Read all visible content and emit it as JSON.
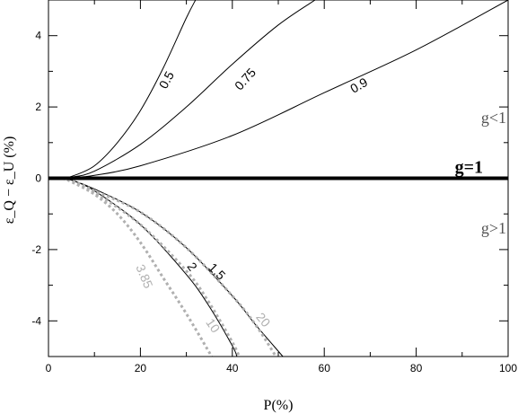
{
  "chart_data": {
    "type": "line",
    "xlabel": "P(%)",
    "ylabel": "ε_Q − ε_U (%)",
    "xlim": [
      0,
      100
    ],
    "ylim": [
      -5,
      5
    ],
    "x_ticks": [
      0,
      20,
      40,
      60,
      80,
      100
    ],
    "y_ticks": [
      -4,
      -2,
      0,
      2,
      4
    ],
    "grid": false,
    "colors": {
      "black": "#000000",
      "gray": "#b0b0b0"
    },
    "region_labels": {
      "upper": "g<1",
      "lower": "g>1"
    },
    "reference_line": {
      "label": "g=1",
      "y": 0
    },
    "series": [
      {
        "name": "0.5",
        "style": "solid",
        "color": "#000000",
        "x": [
          3,
          5,
          10,
          15,
          20,
          25,
          30,
          32
        ],
        "y": [
          0,
          0.05,
          0.35,
          1.0,
          1.9,
          3.1,
          4.5,
          5.0
        ]
      },
      {
        "name": "0.75",
        "style": "solid",
        "color": "#000000",
        "x": [
          3,
          5,
          10,
          20,
          30,
          40,
          50,
          58
        ],
        "y": [
          0,
          0.03,
          0.2,
          0.95,
          2.0,
          3.2,
          4.3,
          5.0
        ]
      },
      {
        "name": "0.9",
        "style": "solid",
        "color": "#000000",
        "x": [
          3,
          5,
          10,
          20,
          40,
          60,
          80,
          100
        ],
        "y": [
          0,
          0.02,
          0.08,
          0.35,
          1.2,
          2.4,
          3.6,
          5.0
        ]
      },
      {
        "name": "1.5",
        "style": "solid",
        "color": "#000000",
        "x": [
          3,
          5,
          10,
          20,
          30,
          40,
          45,
          51
        ],
        "y": [
          0,
          -0.05,
          -0.3,
          -0.95,
          -1.95,
          -3.3,
          -4.1,
          -5.0
        ]
      },
      {
        "name": "2",
        "style": "solid",
        "color": "#000000",
        "x": [
          3,
          5,
          10,
          20,
          30,
          35,
          40,
          41
        ],
        "y": [
          0,
          -0.05,
          -0.35,
          -1.3,
          -2.7,
          -3.6,
          -4.7,
          -5.0
        ]
      },
      {
        "name": "3.85",
        "style": "dotted",
        "color": "#b0b0b0",
        "x": [
          3,
          5,
          10,
          15,
          20,
          25,
          30,
          35.5
        ],
        "y": [
          0,
          -0.1,
          -0.45,
          -1.0,
          -1.8,
          -2.8,
          -3.8,
          -5.0
        ]
      },
      {
        "name": "10",
        "style": "dotted",
        "color": "#b0b0b0",
        "x": [
          3,
          5,
          10,
          20,
          30,
          35,
          40,
          41.5
        ],
        "y": [
          0,
          -0.06,
          -0.4,
          -1.3,
          -2.6,
          -3.5,
          -4.6,
          -5.0
        ]
      },
      {
        "name": "20",
        "style": "dotted",
        "color": "#b0b0b0",
        "x": [
          3,
          5,
          10,
          20,
          30,
          40,
          45,
          49.5
        ],
        "y": [
          0,
          -0.05,
          -0.35,
          -0.95,
          -1.95,
          -3.3,
          -4.1,
          -5.0
        ]
      }
    ]
  }
}
